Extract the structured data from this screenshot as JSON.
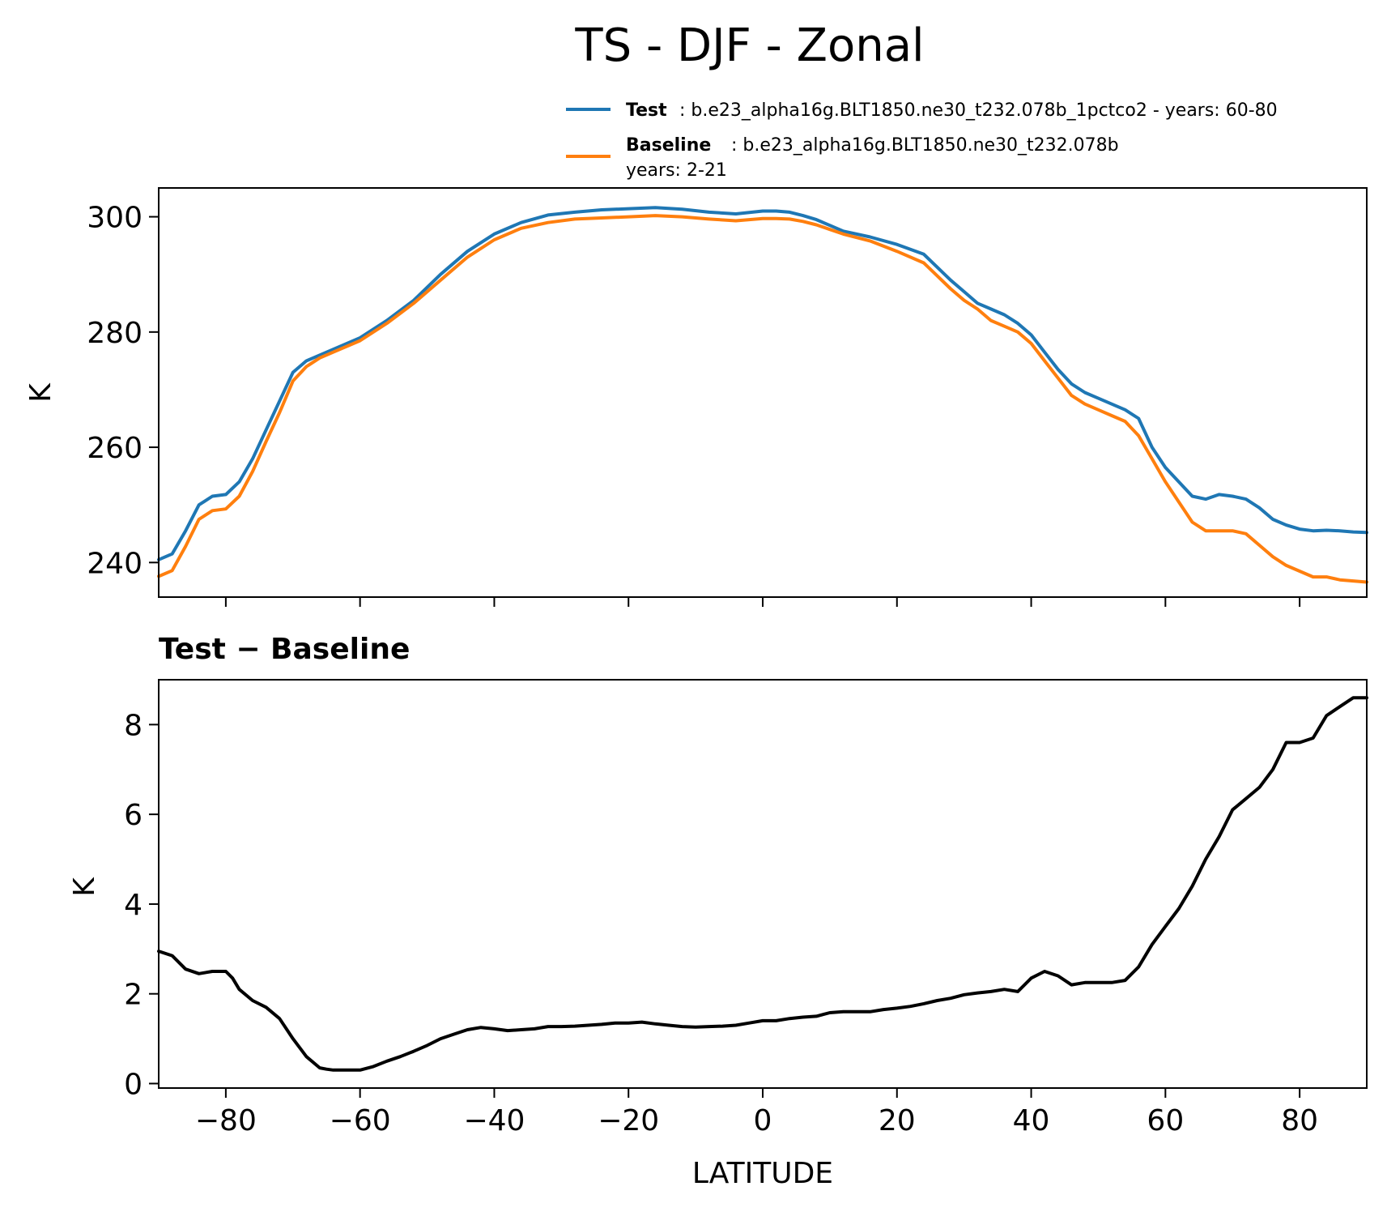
{
  "figure": {
    "title": "TS - DJF - Zonal"
  },
  "legend": {
    "test": {
      "label": "Test",
      "description": ": b.e23_alpha16g.BLT1850.ne30_t232.078b_1pctco2 - years: 60-80",
      "color": "#1f77b4"
    },
    "baseline": {
      "label": "Baseline",
      "description": ": b.e23_alpha16g.BLT1850.ne30_t232.078b",
      "description2": "years: 2-21",
      "color": "#ff7f0e"
    }
  },
  "chart_data": [
    {
      "type": "line",
      "xlabel": "",
      "ylabel": "K",
      "xlim": [
        -90,
        90
      ],
      "ylim": [
        234,
        305
      ],
      "xticks": [
        -80,
        -60,
        -40,
        -20,
        0,
        20,
        40,
        60,
        80
      ],
      "yticks": [
        240,
        260,
        280,
        300
      ],
      "ytick_labels": [
        "240",
        "260",
        "280",
        "300"
      ],
      "legend_position": "above",
      "series": [
        {
          "name": "Test",
          "color": "#1f77b4",
          "x": [
            -90,
            -88,
            -86,
            -84,
            -82,
            -80,
            -78,
            -76,
            -74,
            -72,
            -70,
            -68,
            -66,
            -64,
            -60,
            -56,
            -52,
            -48,
            -44,
            -40,
            -36,
            -32,
            -28,
            -24,
            -20,
            -16,
            -12,
            -8,
            -4,
            0,
            2,
            4,
            6,
            8,
            10,
            12,
            16,
            20,
            24,
            28,
            30,
            32,
            34,
            36,
            38,
            40,
            42,
            44,
            46,
            48,
            50,
            52,
            54,
            56,
            58,
            60,
            62,
            64,
            66,
            68,
            70,
            72,
            74,
            76,
            78,
            80,
            82,
            84,
            86,
            88,
            90
          ],
          "values": [
            240.5,
            241.5,
            245.5,
            250,
            251.5,
            251.8,
            254.0,
            258.0,
            263.0,
            268.0,
            273.0,
            275.0,
            276.0,
            277.0,
            279.0,
            282.0,
            285.5,
            290.0,
            294.0,
            297.0,
            299.0,
            300.3,
            300.8,
            301.2,
            301.4,
            301.6,
            301.3,
            300.8,
            300.5,
            301.0,
            301.0,
            300.8,
            300.2,
            299.5,
            298.5,
            297.5,
            296.5,
            295.2,
            293.5,
            289.0,
            287.0,
            285.0,
            284.0,
            283.0,
            281.5,
            279.5,
            276.5,
            273.5,
            271.0,
            269.5,
            268.5,
            267.5,
            266.5,
            265.0,
            260.0,
            256.5,
            254.0,
            251.5,
            251.0,
            251.8,
            251.5,
            251.0,
            249.5,
            247.5,
            246.5,
            245.8,
            245.5,
            245.6,
            245.5,
            245.3,
            245.2
          ]
        },
        {
          "name": "Baseline",
          "color": "#ff7f0e",
          "x": [
            -90,
            -88,
            -86,
            -84,
            -82,
            -80,
            -78,
            -76,
            -74,
            -72,
            -70,
            -68,
            -66,
            -64,
            -60,
            -56,
            -52,
            -48,
            -44,
            -40,
            -36,
            -32,
            -28,
            -24,
            -20,
            -16,
            -12,
            -8,
            -4,
            0,
            2,
            4,
            6,
            8,
            10,
            12,
            16,
            20,
            24,
            28,
            30,
            32,
            34,
            36,
            38,
            40,
            42,
            44,
            46,
            48,
            50,
            52,
            54,
            56,
            58,
            60,
            62,
            64,
            66,
            68,
            70,
            72,
            74,
            76,
            78,
            80,
            82,
            84,
            86,
            88,
            90
          ],
          "values": [
            237.6,
            238.6,
            242.8,
            247.5,
            249.0,
            249.3,
            251.5,
            255.8,
            261.0,
            266.0,
            271.5,
            274.0,
            275.5,
            276.5,
            278.5,
            281.5,
            285.0,
            289.0,
            293.0,
            296.0,
            298.0,
            299.0,
            299.6,
            299.8,
            300.0,
            300.2,
            300.0,
            299.6,
            299.3,
            299.7,
            299.7,
            299.6,
            299.2,
            298.6,
            297.8,
            297.0,
            295.8,
            294.0,
            292.0,
            287.5,
            285.5,
            284.0,
            282.0,
            281.0,
            280.0,
            278.0,
            275.0,
            272.0,
            269.0,
            267.5,
            266.5,
            265.5,
            264.5,
            262.0,
            258.0,
            254.0,
            250.5,
            247.0,
            245.5,
            245.5,
            245.5,
            245.0,
            243.0,
            241.0,
            239.5,
            238.5,
            237.5,
            237.5,
            237.0,
            236.8,
            236.6
          ]
        }
      ]
    },
    {
      "type": "line",
      "title": "Test − Baseline",
      "xlabel": "LATITUDE",
      "ylabel": "K",
      "xlim": [
        -90,
        90
      ],
      "ylim": [
        -0.1,
        9.0
      ],
      "xticks": [
        -80,
        -60,
        -40,
        -20,
        0,
        20,
        40,
        60,
        80
      ],
      "xtick_labels": [
        "−80",
        "−60",
        "−40",
        "−20",
        "0",
        "20",
        "40",
        "60",
        "80"
      ],
      "yticks": [
        0,
        2,
        4,
        6,
        8
      ],
      "ytick_labels": [
        "0",
        "2",
        "4",
        "6",
        "8"
      ],
      "series": [
        {
          "name": "",
          "color": "#000000",
          "x": [
            -90,
            -88,
            -86,
            -84,
            -82,
            -80,
            -79,
            -78,
            -76,
            -74,
            -72,
            -70,
            -68,
            -66,
            -65,
            -64,
            -62,
            -60,
            -58,
            -56,
            -54,
            -52,
            -50,
            -48,
            -46,
            -44,
            -42,
            -40,
            -38,
            -36,
            -34,
            -32,
            -30,
            -28,
            -26,
            -24,
            -22,
            -20,
            -18,
            -16,
            -14,
            -12,
            -10,
            -8,
            -6,
            -4,
            -2,
            0,
            2,
            4,
            6,
            8,
            10,
            12,
            14,
            16,
            18,
            20,
            22,
            24,
            26,
            28,
            30,
            32,
            34,
            36,
            38,
            40,
            42,
            44,
            46,
            48,
            50,
            52,
            54,
            56,
            58,
            60,
            62,
            64,
            66,
            68,
            70,
            72,
            74,
            76,
            78,
            80,
            82,
            84,
            86,
            88,
            90
          ],
          "values": [
            2.95,
            2.85,
            2.55,
            2.45,
            2.5,
            2.5,
            2.35,
            2.1,
            1.85,
            1.7,
            1.45,
            1.0,
            0.6,
            0.35,
            0.32,
            0.3,
            0.3,
            0.3,
            0.38,
            0.5,
            0.6,
            0.72,
            0.85,
            1.0,
            1.1,
            1.2,
            1.25,
            1.22,
            1.18,
            1.2,
            1.22,
            1.27,
            1.27,
            1.28,
            1.3,
            1.32,
            1.35,
            1.35,
            1.37,
            1.33,
            1.3,
            1.27,
            1.26,
            1.27,
            1.28,
            1.3,
            1.35,
            1.4,
            1.4,
            1.45,
            1.48,
            1.5,
            1.58,
            1.6,
            1.6,
            1.6,
            1.65,
            1.68,
            1.72,
            1.78,
            1.85,
            1.9,
            1.98,
            2.02,
            2.05,
            2.1,
            2.05,
            2.35,
            2.5,
            2.4,
            2.2,
            2.25,
            2.25,
            2.25,
            2.3,
            2.6,
            3.1,
            3.5,
            3.9,
            4.4,
            5.0,
            5.5,
            6.1,
            6.35,
            6.6,
            7.0,
            7.6,
            7.6,
            7.7,
            8.2,
            8.4,
            8.6,
            8.6
          ]
        }
      ]
    }
  ]
}
